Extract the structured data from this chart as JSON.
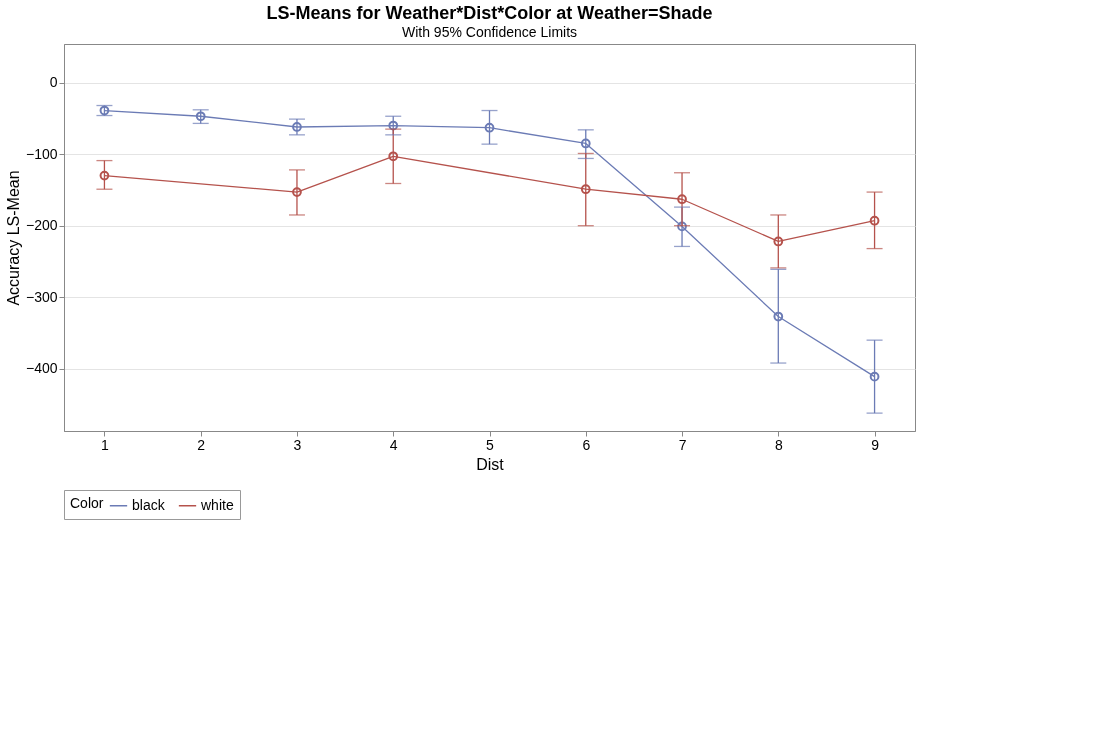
{
  "chart_data": {
    "type": "line",
    "title": "LS-Means for Weather*Dist*Color at Weather=Shade",
    "subtitle": "With 95% Confidence Limits",
    "xlabel": "Dist",
    "ylabel": "Accuracy LS-Mean",
    "legend_title": "Color",
    "xlim": [
      0.58,
      9.42
    ],
    "xticks": [
      1,
      2,
      3,
      4,
      5,
      6,
      7,
      8,
      9
    ],
    "ylim": [
      -487,
      54
    ],
    "yticks": [
      -400,
      -300,
      -200,
      -100,
      0
    ],
    "grid": "y",
    "legend": "bottom",
    "marker": "circle",
    "line_style": "solid",
    "series": [
      {
        "name": "black",
        "color": "#6b7bb5",
        "x": [
          1,
          2,
          3,
          4,
          5,
          6,
          7,
          8,
          9
        ],
        "values": [
          -39,
          -47,
          -62,
          -60,
          -63,
          -85,
          -201,
          -327,
          -411
        ],
        "errors": [
          [
            -46,
            -32
          ],
          [
            -57,
            -38
          ],
          [
            -73,
            -51
          ],
          [
            -73,
            -47
          ],
          [
            -86,
            -39
          ],
          [
            -106,
            -66
          ],
          [
            -229,
            -174
          ],
          [
            -392,
            -261
          ],
          [
            -462,
            -360
          ]
        ]
      },
      {
        "name": "white",
        "color": "#b5524c",
        "x": [
          1,
          3,
          4,
          6,
          7,
          8,
          9
        ],
        "values": [
          -130,
          -153,
          -103,
          -149,
          -163,
          -222,
          -193
        ],
        "errors": [
          [
            -149,
            -109
          ],
          [
            -185,
            -122
          ],
          [
            -141,
            -65
          ],
          [
            -200,
            -99
          ],
          [
            -200,
            -126
          ],
          [
            -259,
            -185
          ],
          [
            -232,
            -153
          ]
        ]
      }
    ]
  }
}
